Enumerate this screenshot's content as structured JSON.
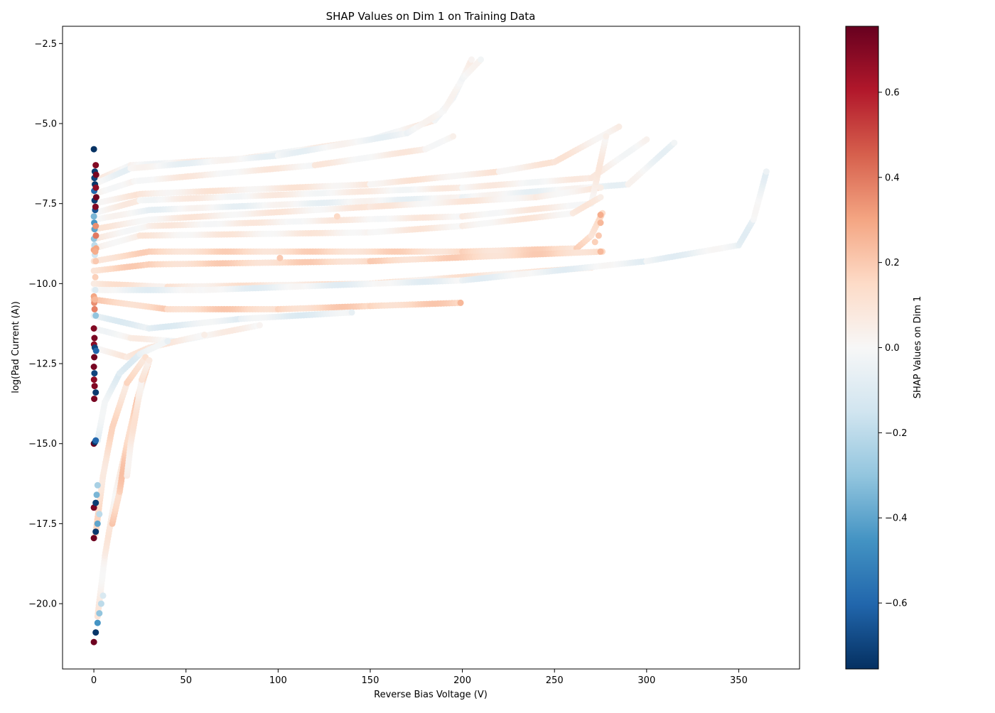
{
  "chart_data": {
    "type": "scatter",
    "title": "SHAP Values on Dim 1 on Training Data",
    "xlabel": "Reverse Bias Voltage (V)",
    "ylabel": "log(Pad Current (A))",
    "xlim": [
      -17,
      383
    ],
    "ylim": [
      -22.04,
      -1.96
    ],
    "xticks": [
      0,
      50,
      100,
      150,
      200,
      250,
      300,
      350
    ],
    "yticks": [
      -2.5,
      -5.0,
      -7.5,
      -10.0,
      -12.5,
      -15.0,
      -17.5,
      -20.0
    ],
    "xtick_labels": [
      "0",
      "50",
      "100",
      "150",
      "200",
      "250",
      "300",
      "350"
    ],
    "ytick_labels": [
      "−2.5",
      "−5.0",
      "−7.5",
      "−10.0",
      "−12.5",
      "−15.0",
      "−17.5",
      "−20.0"
    ],
    "grid": false,
    "colorbar": {
      "label": "SHAP Values on Dim 1",
      "colormap": "RdBu_r",
      "range": [
        -0.755,
        0.755
      ],
      "ticks": [
        0.6,
        0.4,
        0.2,
        0.0,
        -0.2,
        -0.4,
        -0.6
      ],
      "tick_labels": [
        "0.6",
        "0.4",
        "0.2",
        "0.0",
        "−0.2",
        "−0.4",
        "−0.6"
      ]
    },
    "curves": [
      {
        "points": [
          [
            0,
            -6.8
          ],
          [
            20,
            -6.3
          ],
          [
            80,
            -6.1
          ],
          [
            150,
            -5.5
          ],
          [
            185,
            -4.9
          ],
          [
            195,
            -4.2
          ],
          [
            205,
            -3.0
          ]
        ],
        "shap": 0.02
      },
      {
        "points": [
          [
            0,
            -6.9
          ],
          [
            20,
            -6.4
          ],
          [
            100,
            -6.0
          ],
          [
            170,
            -5.3
          ],
          [
            190,
            -4.6
          ],
          [
            200,
            -3.6
          ],
          [
            210,
            -3.0
          ]
        ],
        "shap": -0.02
      },
      {
        "points": [
          [
            0,
            -7.2
          ],
          [
            22,
            -6.8
          ],
          [
            120,
            -6.3
          ],
          [
            180,
            -5.8
          ],
          [
            195,
            -5.4
          ]
        ],
        "shap": 0.04
      },
      {
        "points": [
          [
            0,
            -7.5
          ],
          [
            25,
            -7.2
          ],
          [
            150,
            -6.9
          ],
          [
            220,
            -6.5
          ],
          [
            250,
            -6.2
          ],
          [
            285,
            -5.1
          ]
        ],
        "shap": 0.06
      },
      {
        "points": [
          [
            0,
            -7.8
          ],
          [
            25,
            -7.4
          ],
          [
            200,
            -7.0
          ],
          [
            270,
            -6.7
          ],
          [
            300,
            -5.5
          ]
        ],
        "shap": 0.03
      },
      {
        "points": [
          [
            0,
            -8.0
          ],
          [
            30,
            -7.7
          ],
          [
            200,
            -7.3
          ],
          [
            290,
            -6.9
          ],
          [
            315,
            -5.6
          ]
        ],
        "shap": -0.02
      },
      {
        "points": [
          [
            0,
            -8.3
          ],
          [
            30,
            -8.0
          ],
          [
            150,
            -7.6
          ],
          [
            240,
            -7.3
          ],
          [
            275,
            -7.0
          ]
        ],
        "shap": 0.05
      },
      {
        "points": [
          [
            0,
            -8.6
          ],
          [
            30,
            -8.2
          ],
          [
            200,
            -7.9
          ],
          [
            270,
            -7.5
          ],
          [
            278,
            -5.4
          ]
        ],
        "shap": 0.04
      },
      {
        "points": [
          [
            0,
            -8.9
          ],
          [
            25,
            -8.5
          ],
          [
            150,
            -8.4
          ],
          [
            200,
            -8.2
          ],
          [
            260,
            -7.8
          ],
          [
            275,
            -7.3
          ]
        ],
        "shap": 0.05
      },
      {
        "points": [
          [
            0,
            -9.3
          ],
          [
            30,
            -9.0
          ],
          [
            200,
            -9.0
          ],
          [
            262,
            -8.9
          ],
          [
            270,
            -8.5
          ],
          [
            276,
            -7.8
          ]
        ],
        "shap": 0.14
      },
      {
        "points": [
          [
            0,
            -9.6
          ],
          [
            30,
            -9.4
          ],
          [
            150,
            -9.3
          ],
          [
            276,
            -9.0
          ]
        ],
        "shap": 0.15
      },
      {
        "points": [
          [
            0,
            -10.0
          ],
          [
            40,
            -10.1
          ],
          [
            150,
            -10.0
          ],
          [
            270,
            -9.5
          ]
        ],
        "shap": 0.08
      },
      {
        "points": [
          [
            0,
            -10.2
          ],
          [
            60,
            -10.2
          ],
          [
            200,
            -9.9
          ],
          [
            300,
            -9.3
          ],
          [
            350,
            -8.8
          ],
          [
            358,
            -8.0
          ],
          [
            365,
            -6.5
          ]
        ],
        "shap": -0.04
      },
      {
        "points": [
          [
            0,
            -10.5
          ],
          [
            40,
            -10.8
          ],
          [
            100,
            -10.8
          ],
          [
            150,
            -10.7
          ],
          [
            199,
            -10.6
          ]
        ],
        "shap": 0.16
      },
      {
        "points": [
          [
            0,
            -11.0
          ],
          [
            30,
            -11.4
          ],
          [
            80,
            -11.1
          ],
          [
            140,
            -10.9
          ]
        ],
        "shap": -0.06
      },
      {
        "points": [
          [
            0,
            -11.4
          ],
          [
            20,
            -11.7
          ],
          [
            45,
            -11.8
          ],
          [
            90,
            -11.3
          ]
        ],
        "shap": 0.02
      },
      {
        "points": [
          [
            0,
            -12.0
          ],
          [
            18,
            -12.3
          ],
          [
            30,
            -12.0
          ],
          [
            60,
            -11.6
          ]
        ],
        "shap": 0.05
      },
      {
        "points": [
          [
            2,
            -14.9
          ],
          [
            6,
            -13.7
          ],
          [
            14,
            -12.8
          ],
          [
            25,
            -12.2
          ],
          [
            40,
            -11.8
          ]
        ],
        "shap": -0.06
      },
      {
        "points": [
          [
            1,
            -17.8
          ],
          [
            5,
            -16.0
          ],
          [
            10,
            -14.5
          ],
          [
            18,
            -13.1
          ],
          [
            28,
            -12.3
          ]
        ],
        "shap": 0.12
      },
      {
        "points": [
          [
            2,
            -20.4
          ],
          [
            6,
            -18.5
          ],
          [
            12,
            -16.5
          ],
          [
            20,
            -14.5
          ],
          [
            28,
            -12.8
          ]
        ],
        "shap": 0.05
      },
      {
        "points": [
          [
            10,
            -17.5
          ],
          [
            14,
            -16.5
          ],
          [
            18,
            -15.0
          ],
          [
            24,
            -13.5
          ],
          [
            30,
            -12.4
          ]
        ],
        "shap": 0.18
      },
      {
        "points": [
          [
            18,
            -16.0
          ],
          [
            20,
            -15.0
          ],
          [
            23,
            -14.0
          ],
          [
            26,
            -13.0
          ],
          [
            30,
            -12.4
          ]
        ],
        "shap": 0.07
      }
    ],
    "edge_points": [
      [
        0,
        -5.8,
        -0.75
      ],
      [
        0.5,
        -6.5,
        -0.73
      ],
      [
        0.3,
        -6.7,
        -0.7
      ],
      [
        0.6,
        -6.9,
        -0.74
      ],
      [
        0.2,
        -7.1,
        -0.6
      ],
      [
        0.4,
        -7.4,
        -0.72
      ],
      [
        0.7,
        -7.7,
        -0.65
      ],
      [
        1,
        -6.3,
        0.7
      ],
      [
        1.2,
        -6.6,
        0.72
      ],
      [
        1.1,
        -7.0,
        0.68
      ],
      [
        1.3,
        -7.3,
        0.74
      ],
      [
        0.9,
        -7.6,
        0.7
      ],
      [
        0,
        -7.9,
        -0.35
      ],
      [
        0.2,
        -8.1,
        -0.45
      ],
      [
        0.4,
        -8.3,
        -0.4
      ],
      [
        0.1,
        -8.6,
        -0.3
      ],
      [
        0.3,
        -8.8,
        -0.2
      ],
      [
        0.5,
        -9.1,
        -0.15
      ],
      [
        1,
        -8.2,
        0.35
      ],
      [
        1.1,
        -8.5,
        0.4
      ],
      [
        1.2,
        -8.9,
        0.3
      ],
      [
        1,
        -9.3,
        0.2
      ],
      [
        0.8,
        -9.8,
        0.18
      ],
      [
        0,
        -10.4,
        0.3
      ],
      [
        0.2,
        -10.6,
        0.35
      ],
      [
        0.4,
        -10.8,
        0.38
      ],
      [
        0.6,
        -10.5,
        0.25
      ],
      [
        1,
        -11.0,
        -0.3
      ],
      [
        0.8,
        -10.2,
        -0.1
      ],
      [
        0,
        -11.4,
        0.7
      ],
      [
        0.3,
        -11.7,
        0.72
      ],
      [
        0.1,
        -11.9,
        0.68
      ],
      [
        0.5,
        -12.0,
        -0.7
      ],
      [
        1.2,
        -12.1,
        -0.6
      ],
      [
        0.2,
        -12.3,
        0.74
      ],
      [
        0,
        -12.6,
        0.72
      ],
      [
        0.3,
        -12.8,
        -0.7
      ],
      [
        0.1,
        -13.0,
        0.68
      ],
      [
        0.4,
        -13.2,
        0.7
      ],
      [
        1,
        -13.4,
        -0.73
      ],
      [
        0.2,
        -13.6,
        0.72
      ],
      [
        0,
        -15.0,
        0.75
      ],
      [
        0.6,
        -14.95,
        -0.74
      ],
      [
        1,
        -14.9,
        -0.6
      ],
      [
        0,
        -17.0,
        0.72
      ],
      [
        1,
        -16.85,
        -0.72
      ],
      [
        1.5,
        -16.6,
        -0.35
      ],
      [
        2,
        -16.3,
        -0.25
      ],
      [
        0,
        -17.95,
        0.74
      ],
      [
        1,
        -17.75,
        -0.73
      ],
      [
        2,
        -17.5,
        -0.4
      ],
      [
        3,
        -17.2,
        -0.2
      ],
      [
        0,
        -21.2,
        0.74
      ],
      [
        1,
        -20.9,
        -0.74
      ],
      [
        2,
        -20.6,
        -0.45
      ],
      [
        3,
        -20.3,
        -0.3
      ],
      [
        4,
        -20.0,
        -0.2
      ],
      [
        5,
        -19.75,
        -0.12
      ],
      [
        0,
        -8.95,
        0.3
      ],
      [
        0.8,
        -9.0,
        0.28
      ],
      [
        132,
        -7.9,
        0.15
      ],
      [
        101,
        -9.2,
        0.2
      ],
      [
        275,
        -9.0,
        0.25
      ],
      [
        199,
        -10.6,
        0.25
      ],
      [
        275,
        -7.85,
        0.28
      ],
      [
        275,
        -8.1,
        0.25
      ],
      [
        274,
        -8.5,
        0.2
      ],
      [
        272,
        -8.7,
        0.18
      ]
    ]
  }
}
